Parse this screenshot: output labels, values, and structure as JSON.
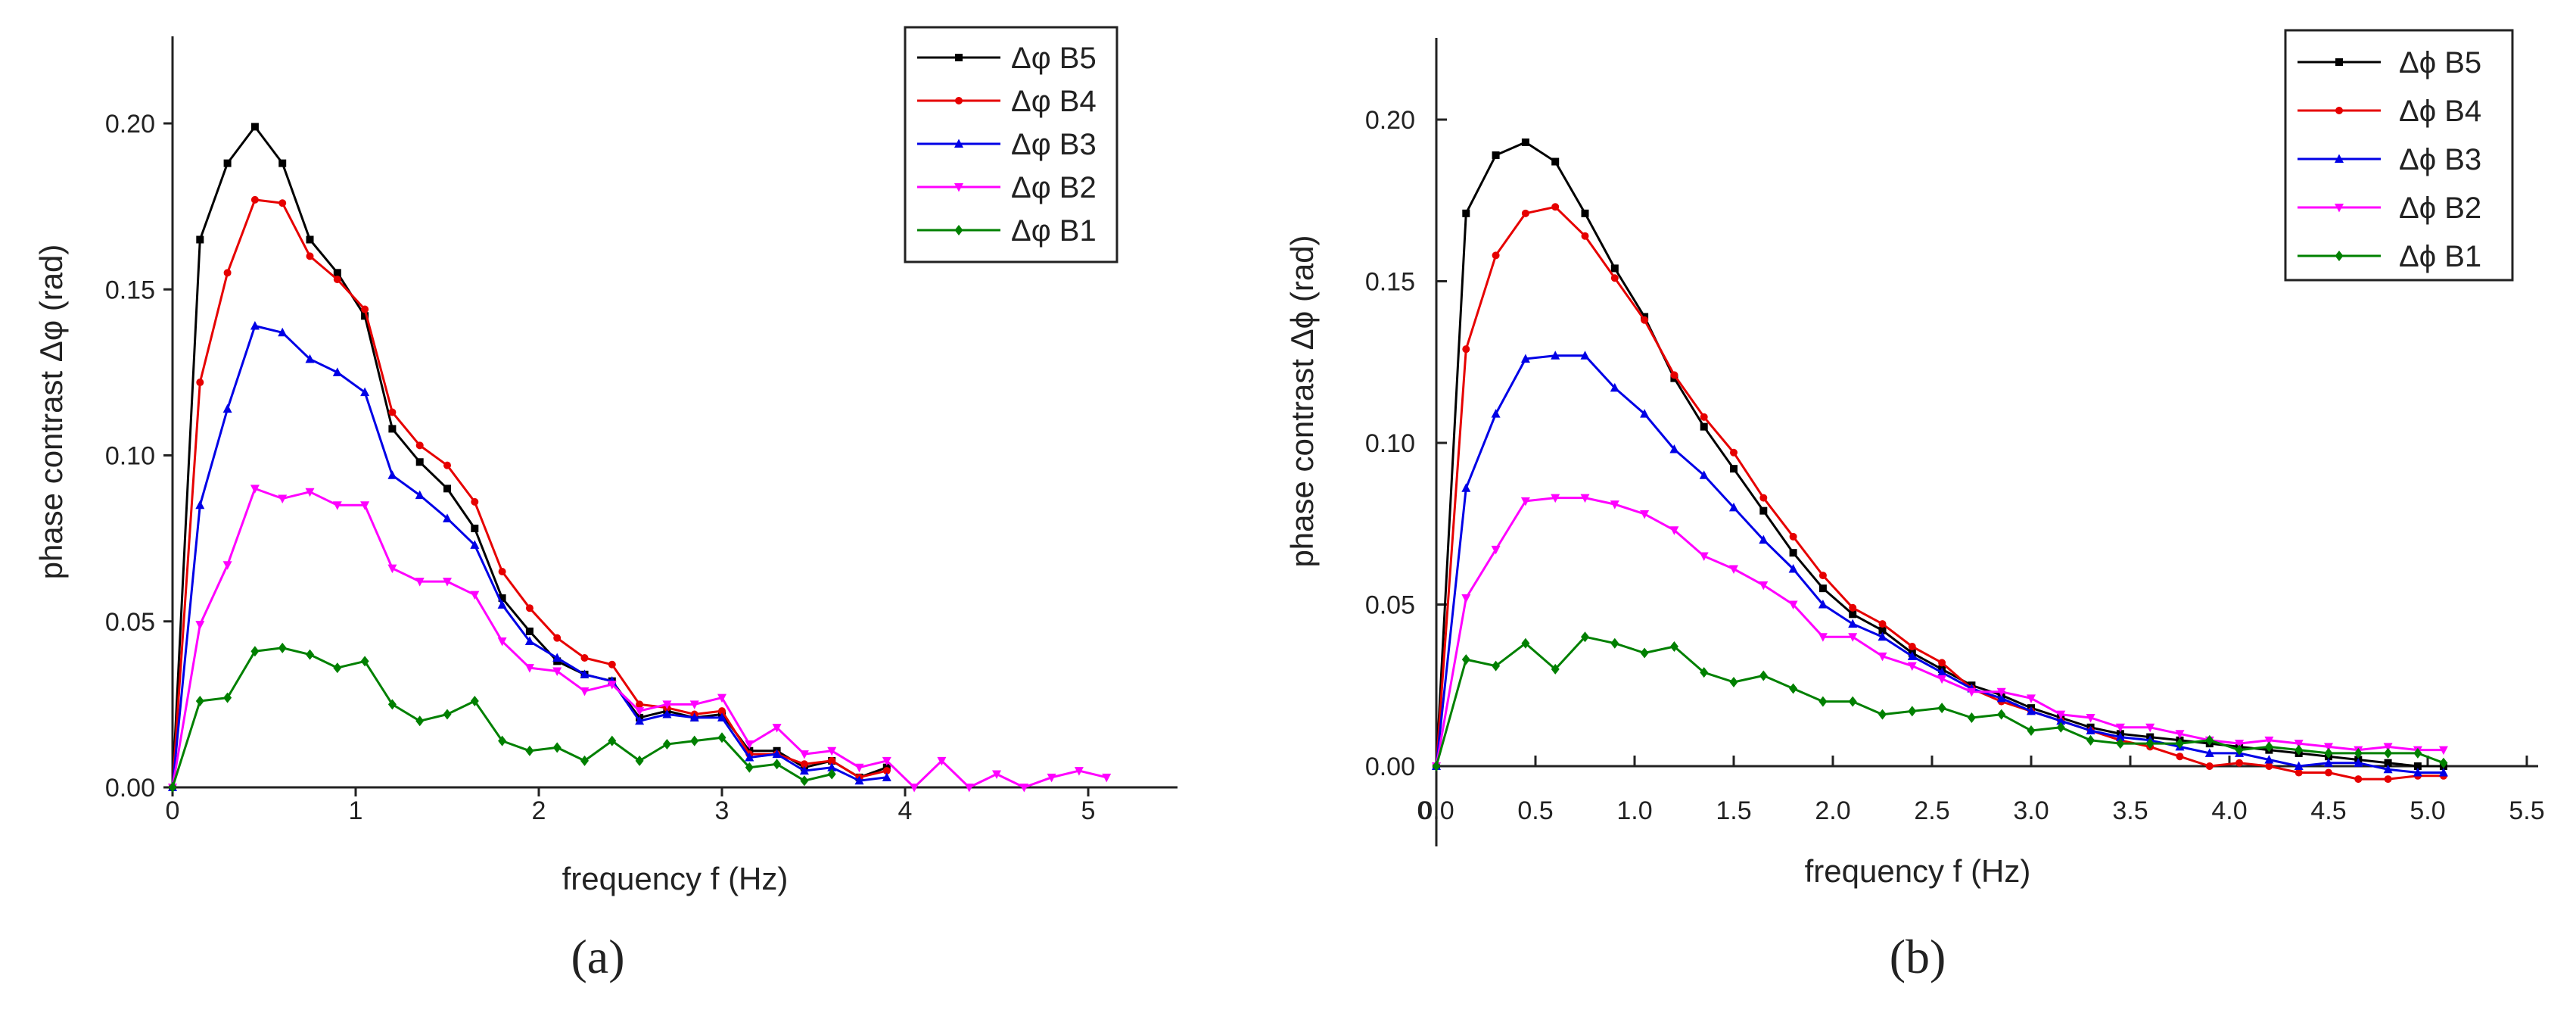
{
  "chart_data": [
    {
      "type": "line",
      "panel_label": "(a)",
      "xlabel": "frequency f (Hz)",
      "ylabel": "phase contrast Δφ (rad)",
      "xlim": [
        0,
        5.5
      ],
      "ylim": [
        0,
        0.225
      ],
      "x_ticks": [
        "0",
        "1",
        "2",
        "3",
        "4",
        "5"
      ],
      "x_tick_values": [
        0,
        1,
        2,
        3,
        4,
        5
      ],
      "y_ticks": [
        "0.00",
        "0.05",
        "0.10",
        "0.15",
        "0.20"
      ],
      "y_tick_values": [
        0,
        0.05,
        0.1,
        0.15,
        0.2
      ],
      "legend_position": "top-right",
      "series": [
        {
          "name": "Δφ B5",
          "color": "#000000",
          "marker": "square",
          "x": [
            0,
            0.15,
            0.3,
            0.45,
            0.6,
            0.75,
            0.9,
            1.05,
            1.2,
            1.35,
            1.5,
            1.65,
            1.8,
            1.95,
            2.1,
            2.25,
            2.4,
            2.55,
            2.7,
            2.85,
            3.0,
            3.15,
            3.3,
            3.45,
            3.6,
            3.75,
            3.9
          ],
          "y": [
            0,
            0.165,
            0.188,
            0.199,
            0.188,
            0.165,
            0.155,
            0.142,
            0.108,
            0.098,
            0.09,
            0.078,
            0.057,
            0.047,
            0.038,
            0.034,
            0.032,
            0.021,
            0.023,
            0.021,
            0.022,
            0.011,
            0.011,
            0.006,
            0.008,
            0.003,
            0.006
          ]
        },
        {
          "name": "Δφ B4",
          "color": "#e60000",
          "marker": "circle",
          "x": [
            0,
            0.15,
            0.3,
            0.45,
            0.6,
            0.75,
            0.9,
            1.05,
            1.2,
            1.35,
            1.5,
            1.65,
            1.8,
            1.95,
            2.1,
            2.25,
            2.4,
            2.55,
            2.7,
            2.85,
            3.0,
            3.15,
            3.3,
            3.45,
            3.6,
            3.75,
            3.9
          ],
          "y": [
            0,
            0.122,
            0.155,
            0.177,
            0.176,
            0.16,
            0.153,
            0.144,
            0.113,
            0.103,
            0.097,
            0.086,
            0.065,
            0.054,
            0.045,
            0.039,
            0.037,
            0.025,
            0.024,
            0.022,
            0.023,
            0.01,
            0.01,
            0.007,
            0.008,
            0.003,
            0.005
          ]
        },
        {
          "name": "Δφ B3",
          "color": "#0000e6",
          "marker": "triangle",
          "x": [
            0,
            0.15,
            0.3,
            0.45,
            0.6,
            0.75,
            0.9,
            1.05,
            1.2,
            1.35,
            1.5,
            1.65,
            1.8,
            1.95,
            2.1,
            2.25,
            2.4,
            2.55,
            2.7,
            2.85,
            3.0,
            3.15,
            3.3,
            3.45,
            3.6,
            3.75,
            3.9
          ],
          "y": [
            0,
            0.085,
            0.114,
            0.139,
            0.137,
            0.129,
            0.125,
            0.119,
            0.094,
            0.088,
            0.081,
            0.073,
            0.055,
            0.044,
            0.039,
            0.034,
            0.032,
            0.02,
            0.022,
            0.021,
            0.021,
            0.009,
            0.01,
            0.005,
            0.006,
            0.002,
            0.003
          ]
        },
        {
          "name": "Δφ B2",
          "color": "#ff00ff",
          "marker": "down-triangle",
          "x": [
            0,
            0.15,
            0.3,
            0.45,
            0.6,
            0.75,
            0.9,
            1.05,
            1.2,
            1.35,
            1.5,
            1.65,
            1.8,
            1.95,
            2.1,
            2.25,
            2.4,
            2.55,
            2.7,
            2.85,
            3.0,
            3.15,
            3.3,
            3.45,
            3.6,
            3.75,
            3.9,
            4.05,
            4.2,
            4.35,
            4.5,
            4.65,
            4.8,
            4.95,
            5.1
          ],
          "y": [
            0,
            0.049,
            0.067,
            0.09,
            0.087,
            0.089,
            0.085,
            0.085,
            0.066,
            0.062,
            0.062,
            0.058,
            0.044,
            0.036,
            0.035,
            0.029,
            0.031,
            0.023,
            0.025,
            0.025,
            0.027,
            0.013,
            0.018,
            0.01,
            0.011,
            0.006,
            0.008,
            0.0,
            0.008,
            0.0,
            0.004,
            0.0,
            0.003,
            0.005,
            0.003
          ]
        },
        {
          "name": "Δφ B1",
          "color": "#008000",
          "marker": "diamond",
          "x": [
            0,
            0.15,
            0.3,
            0.45,
            0.6,
            0.75,
            0.9,
            1.05,
            1.2,
            1.35,
            1.5,
            1.65,
            1.8,
            1.95,
            2.1,
            2.25,
            2.4,
            2.55,
            2.7,
            2.85,
            3.0,
            3.15,
            3.3,
            3.45,
            3.6
          ],
          "y": [
            0,
            0.026,
            0.027,
            0.041,
            0.042,
            0.04,
            0.036,
            0.038,
            0.025,
            0.02,
            0.022,
            0.026,
            0.014,
            0.011,
            0.012,
            0.008,
            0.014,
            0.008,
            0.013,
            0.014,
            0.015,
            0.006,
            0.007,
            0.002,
            0.004
          ]
        }
      ]
    },
    {
      "type": "line",
      "panel_label": "(b)",
      "xlabel": "frequency f (Hz)",
      "ylabel": "phase contrast Δϕ (rad)",
      "xlim": [
        0,
        5.5
      ],
      "ylim": [
        -0.025,
        0.225
      ],
      "x_ticks": [
        "0.0",
        "0.5",
        "1.0",
        "1.5",
        "2.0",
        "2.5",
        "3.0",
        "3.5",
        "4.0",
        "4.5",
        "5.0",
        "5.5"
      ],
      "x_tick_values": [
        0,
        0.5,
        1.0,
        1.5,
        2.0,
        2.5,
        3.0,
        3.5,
        4.0,
        4.5,
        5.0,
        5.5
      ],
      "extra_x_label": "0",
      "y_ticks": [
        "0.00",
        "0.05",
        "0.10",
        "0.15",
        "0.20"
      ],
      "y_tick_values": [
        0,
        0.05,
        0.1,
        0.15,
        0.2
      ],
      "legend_position": "top-right",
      "series": [
        {
          "name": "Δϕ B5",
          "color": "#000000",
          "marker": "square",
          "x": [
            0,
            0.15,
            0.3,
            0.45,
            0.6,
            0.75,
            0.9,
            1.05,
            1.2,
            1.35,
            1.5,
            1.65,
            1.8,
            1.95,
            2.1,
            2.25,
            2.4,
            2.55,
            2.7,
            2.85,
            3.0,
            3.15,
            3.3,
            3.45,
            3.6,
            3.75,
            3.9,
            4.05,
            4.2,
            4.35,
            4.5,
            4.65,
            4.8,
            4.95,
            5.08
          ],
          "y": [
            0,
            0.171,
            0.189,
            0.193,
            0.187,
            0.171,
            0.154,
            0.139,
            0.12,
            0.105,
            0.092,
            0.079,
            0.066,
            0.055,
            0.047,
            0.042,
            0.035,
            0.03,
            0.025,
            0.022,
            0.018,
            0.015,
            0.012,
            0.01,
            0.009,
            0.008,
            0.007,
            0.006,
            0.005,
            0.004,
            0.003,
            0.002,
            0.001,
            0.0,
            0.0
          ]
        },
        {
          "name": "Δϕ B4",
          "color": "#e60000",
          "marker": "circle",
          "x": [
            0,
            0.15,
            0.3,
            0.45,
            0.6,
            0.75,
            0.9,
            1.05,
            1.2,
            1.35,
            1.5,
            1.65,
            1.8,
            1.95,
            2.1,
            2.25,
            2.4,
            2.55,
            2.7,
            2.85,
            3.0,
            3.15,
            3.3,
            3.45,
            3.6,
            3.75,
            3.9,
            4.05,
            4.2,
            4.35,
            4.5,
            4.65,
            4.8,
            4.95,
            5.08
          ],
          "y": [
            0,
            0.129,
            0.158,
            0.171,
            0.173,
            0.164,
            0.151,
            0.138,
            0.121,
            0.108,
            0.097,
            0.083,
            0.071,
            0.059,
            0.049,
            0.044,
            0.037,
            0.032,
            0.024,
            0.02,
            0.017,
            0.014,
            0.011,
            0.008,
            0.006,
            0.003,
            0.0,
            0.001,
            0.0,
            -0.002,
            -0.002,
            -0.004,
            -0.004,
            -0.003,
            -0.003
          ]
        },
        {
          "name": "Δϕ B3",
          "color": "#0000e6",
          "marker": "triangle",
          "x": [
            0,
            0.15,
            0.3,
            0.45,
            0.6,
            0.75,
            0.9,
            1.05,
            1.2,
            1.35,
            1.5,
            1.65,
            1.8,
            1.95,
            2.1,
            2.25,
            2.4,
            2.55,
            2.7,
            2.85,
            3.0,
            3.15,
            3.3,
            3.45,
            3.6,
            3.75,
            3.9,
            4.05,
            4.2,
            4.35,
            4.5,
            4.65,
            4.8,
            4.95,
            5.08
          ],
          "y": [
            0,
            0.086,
            0.109,
            0.126,
            0.127,
            0.127,
            0.117,
            0.109,
            0.098,
            0.09,
            0.08,
            0.07,
            0.061,
            0.05,
            0.044,
            0.04,
            0.034,
            0.029,
            0.024,
            0.021,
            0.017,
            0.014,
            0.011,
            0.009,
            0.008,
            0.006,
            0.004,
            0.004,
            0.002,
            0.0,
            0.001,
            0.001,
            -0.001,
            -0.002,
            -0.002
          ]
        },
        {
          "name": "Δϕ B2",
          "color": "#ff00ff",
          "marker": "down-triangle",
          "x": [
            0,
            0.15,
            0.3,
            0.45,
            0.6,
            0.75,
            0.9,
            1.05,
            1.2,
            1.35,
            1.5,
            1.65,
            1.8,
            1.95,
            2.1,
            2.25,
            2.4,
            2.55,
            2.7,
            2.85,
            3.0,
            3.15,
            3.3,
            3.45,
            3.6,
            3.75,
            3.9,
            4.05,
            4.2,
            4.35,
            4.5,
            4.65,
            4.8,
            4.95,
            5.08
          ],
          "y": [
            0,
            0.052,
            0.067,
            0.082,
            0.083,
            0.083,
            0.081,
            0.078,
            0.073,
            0.065,
            0.061,
            0.056,
            0.05,
            0.04,
            0.04,
            0.034,
            0.031,
            0.027,
            0.023,
            0.023,
            0.021,
            0.016,
            0.015,
            0.012,
            0.012,
            0.01,
            0.008,
            0.007,
            0.008,
            0.007,
            0.006,
            0.005,
            0.006,
            0.005,
            0.005
          ]
        },
        {
          "name": "Δϕ B1",
          "color": "#008000",
          "marker": "diamond",
          "x": [
            0,
            0.15,
            0.3,
            0.45,
            0.6,
            0.75,
            0.9,
            1.05,
            1.2,
            1.35,
            1.5,
            1.65,
            1.8,
            1.95,
            2.1,
            2.25,
            2.4,
            2.55,
            2.7,
            2.85,
            3.0,
            3.15,
            3.3,
            3.45,
            3.6,
            3.75,
            3.9,
            4.05,
            4.2,
            4.35,
            4.5,
            4.65,
            4.8,
            4.95,
            5.08
          ],
          "y": [
            0,
            0.033,
            0.031,
            0.038,
            0.03,
            0.04,
            0.038,
            0.035,
            0.037,
            0.029,
            0.026,
            0.028,
            0.024,
            0.02,
            0.02,
            0.016,
            0.017,
            0.018,
            0.015,
            0.016,
            0.011,
            0.012,
            0.008,
            0.007,
            0.007,
            0.007,
            0.008,
            0.005,
            0.006,
            0.005,
            0.004,
            0.004,
            0.004,
            0.004,
            0.001
          ]
        }
      ]
    }
  ]
}
